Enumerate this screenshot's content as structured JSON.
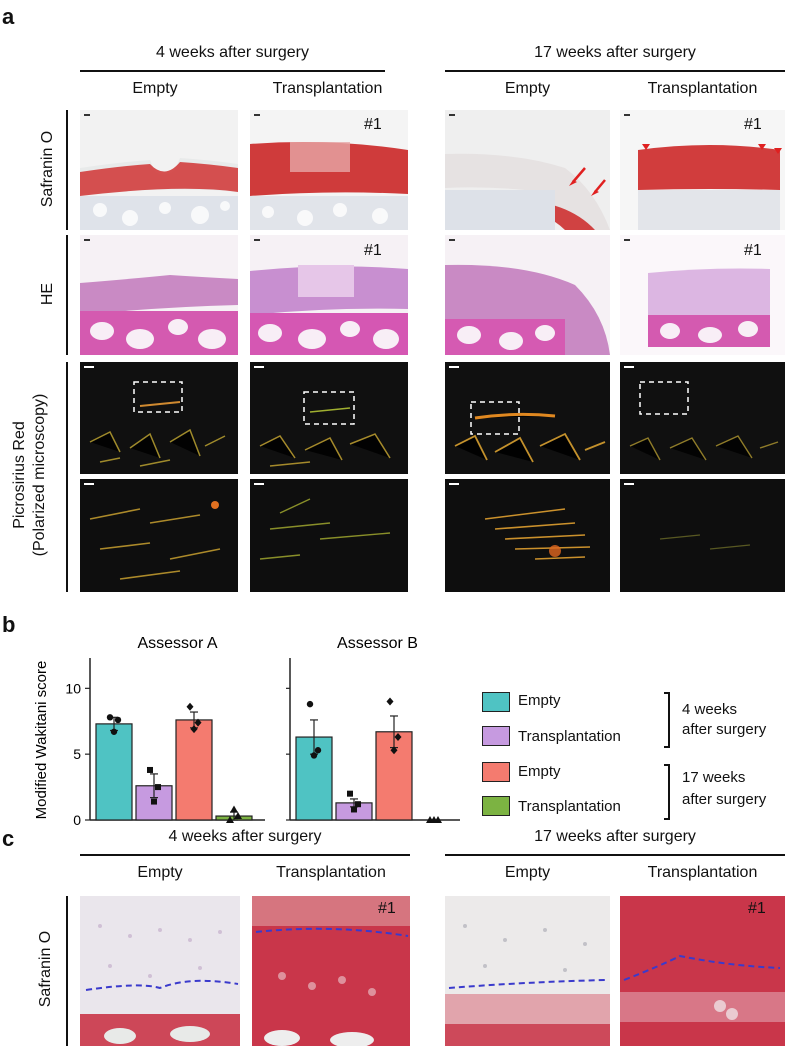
{
  "panel_a": {
    "letter": "a",
    "group_headers": [
      "4 weeks after surgery",
      "17 weeks after surgery"
    ],
    "column_headers": [
      "Empty",
      "Transplantation",
      "Empty",
      "Transplantation"
    ],
    "row_labels": [
      "Safranin O",
      "HE",
      "Picrosirius Red",
      "(Polarized microscopy)"
    ],
    "sample_tag": "#1"
  },
  "panel_b": {
    "letter": "b",
    "legend": [
      {
        "label": "Empty",
        "color": "#4fc3c3"
      },
      {
        "label": "Transplantation",
        "color": "#c69ae0"
      },
      {
        "label": "Empty",
        "color": "#f47b6f"
      },
      {
        "label": "Transplantation",
        "color": "#7cb342"
      }
    ],
    "legend_groups": [
      {
        "line1": "4 weeks",
        "line2": "after surgery"
      },
      {
        "line1": "17 weeks",
        "line2": "after surgery"
      }
    ]
  },
  "chart_data": {
    "type": "bar",
    "ylabel": "Modified Wakitani score",
    "ylim": [
      0,
      12
    ],
    "yticks": [
      0,
      5,
      10
    ],
    "facets": [
      {
        "title": "Assessor  A",
        "series": [
          {
            "name": "Empty (4 weeks)",
            "value": 7.3,
            "sem": 0.5,
            "points": [
              7.8,
              7.6,
              6.7
            ],
            "color": "#4fc3c3",
            "marker": "circle"
          },
          {
            "name": "Transplantation (4 weeks)",
            "value": 2.6,
            "sem": 0.9,
            "points": [
              3.8,
              2.5,
              1.4
            ],
            "color": "#c69ae0",
            "marker": "square"
          },
          {
            "name": "Empty (17 weeks)",
            "value": 7.6,
            "sem": 0.6,
            "points": [
              8.6,
              7.4,
              6.9
            ],
            "color": "#f47b6f",
            "marker": "diamond"
          },
          {
            "name": "Transplantation (17 weeks)",
            "value": 0.3,
            "sem": 0.3,
            "points": [
              0,
              0.3,
              0.8
            ],
            "color": "#7cb342",
            "marker": "triangle"
          }
        ]
      },
      {
        "title": "Assessor B",
        "series": [
          {
            "name": "Empty (4 weeks)",
            "value": 6.3,
            "sem": 1.3,
            "points": [
              8.8,
              5.3,
              4.9
            ],
            "color": "#4fc3c3",
            "marker": "circle"
          },
          {
            "name": "Transplantation (4 weeks)",
            "value": 1.3,
            "sem": 0.3,
            "points": [
              2.0,
              1.2,
              0.8
            ],
            "color": "#c69ae0",
            "marker": "square"
          },
          {
            "name": "Empty (17 weeks)",
            "value": 6.7,
            "sem": 1.2,
            "points": [
              9.0,
              6.3,
              5.3
            ],
            "color": "#f47b6f",
            "marker": "diamond"
          },
          {
            "name": "Transplantation (17 weeks)",
            "value": 0.0,
            "sem": 0.0,
            "points": [
              0,
              0,
              0
            ],
            "color": "#7cb342",
            "marker": "triangle"
          }
        ]
      }
    ]
  },
  "panel_c": {
    "letter": "c",
    "group_headers": [
      "4 weeks after surgery",
      "17 weeks after surgery"
    ],
    "column_headers": [
      "Empty",
      "Transplantation",
      "Empty",
      "Transplantation"
    ],
    "row_label": "Safranin O",
    "sample_tag": "#1"
  }
}
